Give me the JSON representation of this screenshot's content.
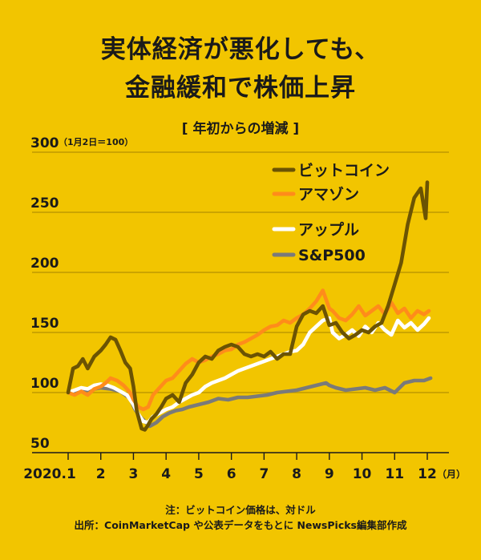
{
  "title_line1": "実体経済が悪化しても、",
  "title_line2": "金融緩和で株価上昇",
  "subtitle": "[ 年初からの増減 ]",
  "notes": {
    "line1": "注：ビットコイン価格は、対ドル",
    "line2": "出所：CoinMarketCap や公表データをもとに NewsPicks編集部作成"
  },
  "colors": {
    "background": "#f2c500",
    "bitcoin": "#6b5303",
    "amazon": "#ff8c1a",
    "apple": "#ffffff",
    "sp500": "#7a7a7a",
    "grid": "#bf9a00",
    "axis": "#1a1a1a"
  },
  "chart_data": {
    "type": "line",
    "ylim": [
      50,
      300
    ],
    "xlim": [
      1,
      12
    ],
    "y_ticks": [
      {
        "value": 300,
        "label": "300"
      },
      {
        "value": 250,
        "label": "250"
      },
      {
        "value": 200,
        "label": "200"
      },
      {
        "value": 150,
        "label": "150"
      },
      {
        "value": 100,
        "label": "100"
      },
      {
        "value": 50,
        "label": "50"
      }
    ],
    "y_note": "（1月2日＝100）",
    "x_ticks": [
      {
        "value": 1,
        "label": "2020.1"
      },
      {
        "value": 2,
        "label": "2"
      },
      {
        "value": 3,
        "label": "3"
      },
      {
        "value": 4,
        "label": "4"
      },
      {
        "value": 5,
        "label": "5"
      },
      {
        "value": 6,
        "label": "6"
      },
      {
        "value": 7,
        "label": "7"
      },
      {
        "value": 8,
        "label": "8"
      },
      {
        "value": 9,
        "label": "9"
      },
      {
        "value": 10,
        "label": "10"
      },
      {
        "value": 11,
        "label": "11"
      },
      {
        "value": 12,
        "label": "12"
      }
    ],
    "x_unit": "（月）",
    "grid": "horizontal",
    "legend_position": "top-right",
    "series": [
      {
        "name": "ビットコイン",
        "color_key": "bitcoin",
        "x": [
          1.0,
          1.15,
          1.3,
          1.45,
          1.6,
          1.8,
          2.0,
          2.15,
          2.3,
          2.45,
          2.6,
          2.75,
          2.9,
          3.0,
          3.1,
          3.25,
          3.35,
          3.45,
          3.55,
          3.7,
          3.85,
          4.0,
          4.2,
          4.4,
          4.6,
          4.8,
          5.0,
          5.2,
          5.4,
          5.6,
          5.8,
          6.0,
          6.2,
          6.4,
          6.6,
          6.8,
          7.0,
          7.2,
          7.4,
          7.6,
          7.8,
          8.0,
          8.2,
          8.4,
          8.6,
          8.8,
          9.0,
          9.2,
          9.4,
          9.6,
          9.8,
          10.0,
          10.2,
          10.4,
          10.6,
          10.8,
          11.0,
          11.2,
          11.4,
          11.6,
          11.8,
          11.95,
          12.0
        ],
        "values": [
          100,
          120,
          122,
          128,
          120,
          130,
          135,
          140,
          146,
          144,
          135,
          125,
          120,
          105,
          85,
          70,
          69,
          73,
          78,
          82,
          88,
          95,
          98,
          92,
          108,
          115,
          125,
          130,
          128,
          135,
          138,
          140,
          138,
          132,
          130,
          132,
          130,
          134,
          128,
          132,
          132,
          155,
          165,
          168,
          166,
          172,
          156,
          158,
          150,
          145,
          148,
          152,
          150,
          155,
          158,
          172,
          190,
          208,
          240,
          262,
          270,
          245,
          275
        ]
      },
      {
        "name": "アマゾン",
        "color_key": "amazon",
        "x": [
          1.0,
          1.2,
          1.4,
          1.6,
          1.8,
          2.0,
          2.15,
          2.3,
          2.5,
          2.7,
          2.9,
          3.0,
          3.15,
          3.3,
          3.45,
          3.6,
          3.8,
          4.0,
          4.2,
          4.4,
          4.6,
          4.8,
          5.0,
          5.2,
          5.4,
          5.6,
          5.8,
          6.0,
          6.2,
          6.4,
          6.6,
          6.8,
          7.0,
          7.2,
          7.4,
          7.6,
          7.8,
          8.0,
          8.2,
          8.4,
          8.6,
          8.8,
          9.0,
          9.1,
          9.3,
          9.5,
          9.7,
          9.9,
          10.1,
          10.3,
          10.5,
          10.7,
          10.9,
          11.1,
          11.3,
          11.5,
          11.7,
          11.9,
          12.05
        ],
        "values": [
          100,
          98,
          101,
          98,
          103,
          105,
          108,
          112,
          110,
          106,
          100,
          94,
          88,
          86,
          88,
          98,
          104,
          110,
          112,
          118,
          124,
          128,
          125,
          127,
          130,
          132,
          135,
          136,
          140,
          142,
          145,
          148,
          152,
          155,
          156,
          160,
          158,
          162,
          165,
          170,
          176,
          185,
          170,
          168,
          162,
          160,
          165,
          172,
          164,
          168,
          172,
          165,
          175,
          166,
          170,
          162,
          168,
          165,
          168
        ]
      },
      {
        "name": "アップル",
        "color_key": "apple",
        "x": [
          1.0,
          1.2,
          1.4,
          1.6,
          1.8,
          2.0,
          2.2,
          2.4,
          2.6,
          2.8,
          3.0,
          3.15,
          3.3,
          3.45,
          3.6,
          3.8,
          4.0,
          4.2,
          4.4,
          4.6,
          4.8,
          5.0,
          5.2,
          5.4,
          5.6,
          5.8,
          6.0,
          6.2,
          6.4,
          6.6,
          6.8,
          7.0,
          7.2,
          7.4,
          7.6,
          7.8,
          8.0,
          8.2,
          8.4,
          8.6,
          8.8,
          9.0,
          9.1,
          9.3,
          9.5,
          9.7,
          9.9,
          10.1,
          10.3,
          10.5,
          10.7,
          10.9,
          11.1,
          11.3,
          11.5,
          11.7,
          11.9,
          12.05
        ],
        "values": [
          100,
          102,
          104,
          103,
          106,
          107,
          106,
          104,
          101,
          98,
          90,
          82,
          76,
          75,
          80,
          83,
          86,
          88,
          92,
          95,
          98,
          100,
          105,
          108,
          110,
          112,
          115,
          118,
          120,
          122,
          124,
          126,
          128,
          130,
          132,
          134,
          135,
          140,
          150,
          155,
          160,
          162,
          150,
          145,
          148,
          152,
          147,
          155,
          150,
          158,
          152,
          148,
          160,
          154,
          158,
          152,
          157,
          162
        ]
      },
      {
        "name": "S&P500",
        "color_key": "sp500",
        "x": [
          1.0,
          1.3,
          1.6,
          2.0,
          2.3,
          2.6,
          2.9,
          3.05,
          3.2,
          3.35,
          3.5,
          3.7,
          3.9,
          4.1,
          4.3,
          4.5,
          4.7,
          5.0,
          5.3,
          5.6,
          5.9,
          6.2,
          6.5,
          6.8,
          7.1,
          7.4,
          7.7,
          8.0,
          8.3,
          8.6,
          8.9,
          9.0,
          9.2,
          9.5,
          9.8,
          10.1,
          10.4,
          10.7,
          11.0,
          11.3,
          11.6,
          11.9,
          12.1
        ],
        "values": [
          100,
          101,
          102,
          104,
          103,
          101,
          95,
          86,
          80,
          76,
          72,
          75,
          80,
          83,
          85,
          86,
          88,
          90,
          92,
          95,
          94,
          96,
          96,
          97,
          98,
          100,
          101,
          102,
          104,
          106,
          108,
          106,
          104,
          102,
          103,
          104,
          102,
          104,
          100,
          108,
          110,
          110,
          112
        ]
      }
    ]
  }
}
